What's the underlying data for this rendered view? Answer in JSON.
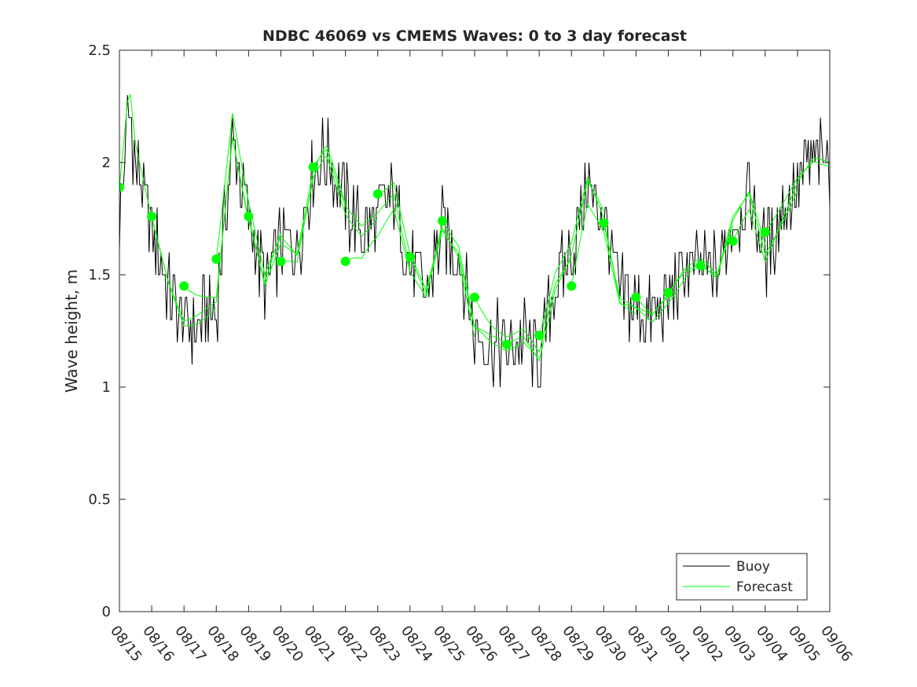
{
  "chart_data": {
    "type": "line",
    "title": "NDBC 46069 vs CMEMS Waves: 0 to 3 day forecast",
    "xlabel": "",
    "ylabel": "Wave height, m",
    "xlim": [
      0,
      22
    ],
    "ylim": [
      0,
      2.5
    ],
    "yticks": [
      0,
      0.5,
      1,
      1.5,
      2,
      2.5
    ],
    "ytick_labels": [
      "0",
      "0.5",
      "1",
      "1.5",
      "2",
      "2.5"
    ],
    "x_tick_labels": [
      "08/15",
      "08/16",
      "08/17",
      "08/18",
      "08/19",
      "08/20",
      "08/21",
      "08/22",
      "08/23",
      "08/24",
      "08/25",
      "08/26",
      "08/27",
      "08/28",
      "08/29",
      "08/30",
      "08/31",
      "09/01",
      "09/02",
      "09/03",
      "09/04",
      "09/05",
      "09/06"
    ],
    "legend": {
      "position": "bottom-right",
      "entries": [
        "Buoy",
        "Forecast"
      ]
    },
    "colors": {
      "buoy": "#000000",
      "forecast": "#00ff00",
      "axes": "#262626"
    },
    "buoy_anchor_days": [
      0,
      0.3,
      0.5,
      1,
      1.5,
      2,
      2.4,
      3,
      3.5,
      4,
      4.5,
      5,
      5.5,
      6,
      6.4,
      7,
      7.5,
      8,
      8.5,
      9,
      9.5,
      10,
      10.5,
      11,
      11.5,
      12,
      12.5,
      13,
      13.5,
      14,
      14.5,
      15,
      15.5,
      16,
      16.5,
      17,
      17.5,
      18,
      18.5,
      19,
      19.5,
      20,
      20.5,
      21,
      21.5,
      22
    ],
    "buoy_anchor_heights": [
      1.75,
      2.25,
      2.0,
      1.7,
      1.45,
      1.28,
      1.3,
      1.35,
      2.1,
      1.75,
      1.45,
      1.65,
      1.6,
      1.95,
      2.05,
      1.8,
      1.7,
      1.75,
      1.85,
      1.55,
      1.4,
      1.7,
      1.6,
      1.25,
      1.2,
      1.18,
      1.22,
      1.12,
      1.45,
      1.6,
      1.9,
      1.75,
      1.4,
      1.35,
      1.3,
      1.4,
      1.5,
      1.55,
      1.5,
      1.75,
      1.85,
      1.6,
      1.75,
      1.9,
      2.0,
      2.0
    ],
    "forecast_init_days": [
      0,
      1,
      2,
      3,
      4,
      5,
      6,
      7,
      8,
      9,
      10,
      11,
      12,
      13,
      14,
      15,
      16,
      17,
      18,
      19,
      20
    ],
    "forecast_init_heights": [
      1.89,
      1.76,
      1.45,
      1.57,
      1.76,
      1.56,
      1.98,
      1.56,
      1.86,
      1.58,
      1.74,
      1.4,
      1.19,
      1.23,
      1.45,
      1.73,
      1.4,
      1.42,
      1.54,
      1.65,
      1.69
    ],
    "forecast_member_count": 21,
    "forecast_horizon_days": 3
  }
}
